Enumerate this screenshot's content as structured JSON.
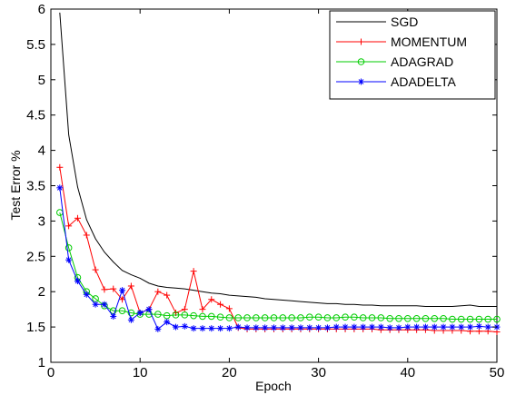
{
  "chart_data": {
    "type": "line",
    "title": "",
    "xlabel": "Epoch",
    "ylabel": "Test Error %",
    "xlim": [
      0,
      50
    ],
    "ylim": [
      1,
      6
    ],
    "xticks": [
      0,
      10,
      20,
      30,
      40,
      50
    ],
    "yticks": [
      1,
      1.5,
      2,
      2.5,
      3,
      3.5,
      4,
      4.5,
      5,
      5.5,
      6
    ],
    "grid": false,
    "legend_position": "top-right",
    "x": [
      1,
      2,
      3,
      4,
      5,
      6,
      7,
      8,
      9,
      10,
      11,
      12,
      13,
      14,
      15,
      16,
      17,
      18,
      19,
      20,
      21,
      22,
      23,
      24,
      25,
      26,
      27,
      28,
      29,
      30,
      31,
      32,
      33,
      34,
      35,
      36,
      37,
      38,
      39,
      40,
      41,
      42,
      43,
      44,
      45,
      46,
      47,
      48,
      49,
      50
    ],
    "series": [
      {
        "name": "SGD",
        "color": "#000000",
        "marker": "none",
        "values": [
          5.95,
          4.22,
          3.48,
          3.02,
          2.75,
          2.56,
          2.42,
          2.3,
          2.24,
          2.19,
          2.12,
          2.08,
          2.06,
          2.05,
          2.04,
          2.02,
          2.0,
          1.98,
          1.97,
          1.95,
          1.94,
          1.93,
          1.92,
          1.9,
          1.89,
          1.88,
          1.87,
          1.86,
          1.85,
          1.84,
          1.83,
          1.83,
          1.82,
          1.82,
          1.81,
          1.81,
          1.8,
          1.8,
          1.8,
          1.8,
          1.8,
          1.79,
          1.79,
          1.79,
          1.79,
          1.8,
          1.81,
          1.79,
          1.79,
          1.79
        ]
      },
      {
        "name": "MOMENTUM",
        "color": "#ff0000",
        "marker": "plus",
        "values": [
          3.76,
          2.93,
          3.04,
          2.8,
          2.31,
          2.03,
          2.04,
          1.89,
          2.08,
          1.7,
          1.75,
          2.0,
          1.95,
          1.7,
          1.75,
          2.29,
          1.75,
          1.89,
          1.82,
          1.76,
          1.49,
          1.47,
          1.47,
          1.47,
          1.47,
          1.47,
          1.47,
          1.47,
          1.47,
          1.47,
          1.47,
          1.47,
          1.47,
          1.47,
          1.47,
          1.47,
          1.46,
          1.46,
          1.46,
          1.46,
          1.46,
          1.46,
          1.45,
          1.45,
          1.45,
          1.45,
          1.44,
          1.44,
          1.44,
          1.43
        ]
      },
      {
        "name": "ADAGRAD",
        "color": "#00cc00",
        "marker": "circle",
        "values": [
          3.12,
          2.62,
          2.2,
          2.0,
          1.9,
          1.8,
          1.73,
          1.73,
          1.7,
          1.68,
          1.68,
          1.68,
          1.66,
          1.67,
          1.67,
          1.66,
          1.65,
          1.65,
          1.64,
          1.63,
          1.63,
          1.63,
          1.63,
          1.63,
          1.63,
          1.63,
          1.63,
          1.63,
          1.64,
          1.64,
          1.63,
          1.63,
          1.64,
          1.64,
          1.63,
          1.63,
          1.63,
          1.62,
          1.62,
          1.62,
          1.62,
          1.62,
          1.62,
          1.62,
          1.61,
          1.61,
          1.61,
          1.61,
          1.61,
          1.61
        ]
      },
      {
        "name": "ADADELTA",
        "color": "#0000ff",
        "marker": "star",
        "values": [
          3.47,
          2.45,
          2.15,
          1.96,
          1.82,
          1.82,
          1.65,
          2.02,
          1.6,
          1.7,
          1.75,
          1.47,
          1.57,
          1.5,
          1.51,
          1.48,
          1.48,
          1.48,
          1.48,
          1.48,
          1.5,
          1.49,
          1.49,
          1.49,
          1.49,
          1.49,
          1.49,
          1.49,
          1.49,
          1.49,
          1.49,
          1.5,
          1.5,
          1.5,
          1.5,
          1.5,
          1.5,
          1.49,
          1.49,
          1.5,
          1.5,
          1.5,
          1.5,
          1.5,
          1.5,
          1.5,
          1.5,
          1.51,
          1.5,
          1.5
        ]
      }
    ]
  }
}
